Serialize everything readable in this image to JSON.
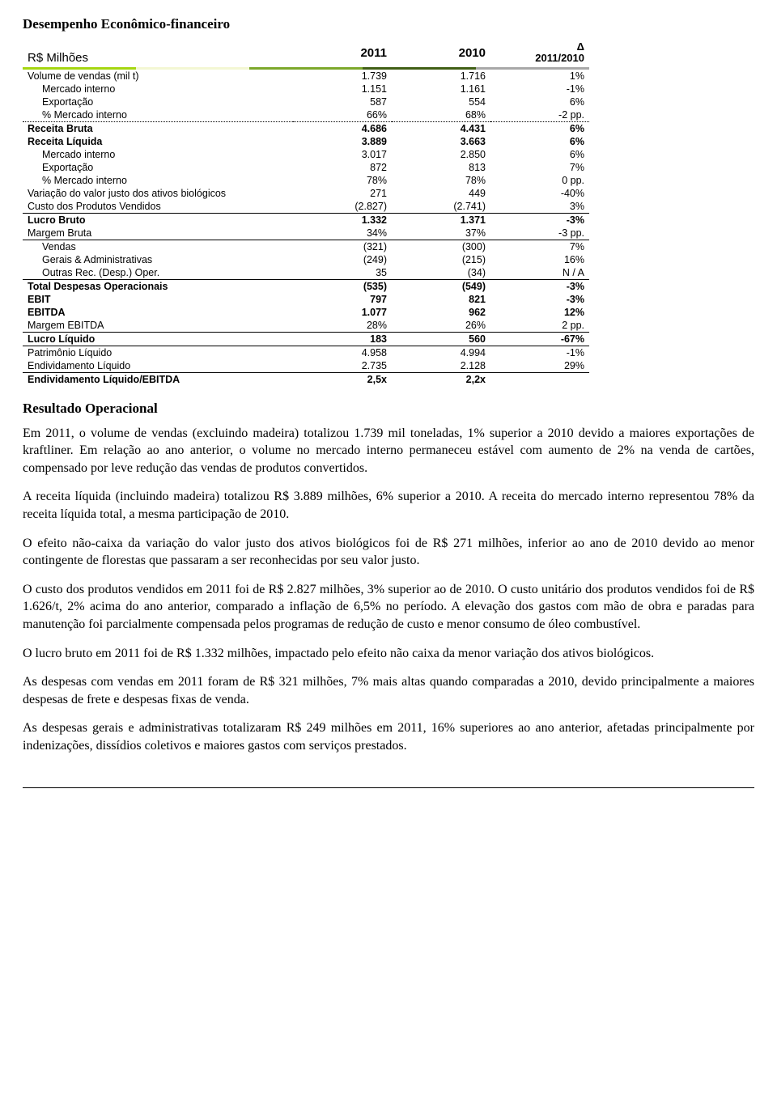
{
  "title": "Desempenho Econômico-financeiro",
  "table": {
    "unit_label": "R$ Milhões",
    "head_2011": "2011",
    "head_2010": "2010",
    "head_delta_top": "Δ",
    "head_delta_bot": "2011/2010",
    "head_colors": [
      "#a5d610",
      "#f3f7d3",
      "#7ca82b",
      "#405f15",
      "#a8a8a8"
    ],
    "rows": [
      {
        "label": "Volume de vendas (mil t)",
        "c1": "1.739",
        "c2": "1.716",
        "c3": "1%",
        "indent": 0,
        "bold": false,
        "border": "none"
      },
      {
        "label": "Mercado interno",
        "c1": "1.151",
        "c2": "1.161",
        "c3": "-1%",
        "indent": 1,
        "bold": false,
        "border": "none"
      },
      {
        "label": "Exportação",
        "c1": "587",
        "c2": "554",
        "c3": "6%",
        "indent": 1,
        "bold": false,
        "border": "none"
      },
      {
        "label": "% Mercado interno",
        "c1": "66%",
        "c2": "68%",
        "c3": "-2 pp.",
        "indent": 1,
        "bold": false,
        "border": "dotted"
      },
      {
        "label": "Receita Bruta",
        "c1": "4.686",
        "c2": "4.431",
        "c3": "6%",
        "indent": 0,
        "bold": true,
        "border": "none"
      },
      {
        "label": "Receita Líquida",
        "c1": "3.889",
        "c2": "3.663",
        "c3": "6%",
        "indent": 0,
        "bold": true,
        "border": "none"
      },
      {
        "label": "Mercado interno",
        "c1": "3.017",
        "c2": "2.850",
        "c3": "6%",
        "indent": 1,
        "bold": false,
        "border": "none"
      },
      {
        "label": "Exportação",
        "c1": "872",
        "c2": "813",
        "c3": "7%",
        "indent": 1,
        "bold": false,
        "border": "none"
      },
      {
        "label": "% Mercado interno",
        "c1": "78%",
        "c2": "78%",
        "c3": "0 pp.",
        "indent": 1,
        "bold": false,
        "border": "none"
      },
      {
        "label": "Variação do valor justo dos ativos biológicos",
        "c1": "271",
        "c2": "449",
        "c3": "-40%",
        "indent": 0,
        "bold": false,
        "border": "none"
      },
      {
        "label": "Custo dos Produtos Vendidos",
        "c1": "(2.827)",
        "c2": "(2.741)",
        "c3": "3%",
        "indent": 0,
        "bold": false,
        "border": "solid"
      },
      {
        "label": "Lucro Bruto",
        "c1": "1.332",
        "c2": "1.371",
        "c3": "-3%",
        "indent": 0,
        "bold": true,
        "border": "none"
      },
      {
        "label": "Margem Bruta",
        "c1": "34%",
        "c2": "37%",
        "c3": "-3 pp.",
        "indent": 0,
        "bold": false,
        "border": "solid"
      },
      {
        "label": "Vendas",
        "c1": "(321)",
        "c2": "(300)",
        "c3": "7%",
        "indent": 1,
        "bold": false,
        "border": "none"
      },
      {
        "label": "Gerais & Administrativas",
        "c1": "(249)",
        "c2": "(215)",
        "c3": "16%",
        "indent": 1,
        "bold": false,
        "border": "none"
      },
      {
        "label": "Outras Rec. (Desp.) Oper.",
        "c1": "35",
        "c2": "(34)",
        "c3": "N / A",
        "indent": 1,
        "bold": false,
        "border": "solid"
      },
      {
        "label": "Total Despesas Operacionais",
        "c1": "(535)",
        "c2": "(549)",
        "c3": "-3%",
        "indent": 0,
        "bold": true,
        "border": "none"
      },
      {
        "label": "EBIT",
        "c1": "797",
        "c2": "821",
        "c3": "-3%",
        "indent": 0,
        "bold": true,
        "border": "none"
      },
      {
        "label": "EBITDA",
        "c1": "1.077",
        "c2": "962",
        "c3": "12%",
        "indent": 0,
        "bold": true,
        "border": "none"
      },
      {
        "label": "Margem EBITDA",
        "c1": "28%",
        "c2": "26%",
        "c3": "2 pp.",
        "indent": 0,
        "bold": false,
        "border": "solid"
      },
      {
        "label": "Lucro Líquido",
        "c1": "183",
        "c2": "560",
        "c3": "-67%",
        "indent": 0,
        "bold": true,
        "border": "solid"
      },
      {
        "label": "Patrimônio Líquido",
        "c1": "4.958",
        "c2": "4.994",
        "c3": "-1%",
        "indent": 0,
        "bold": false,
        "border": "none"
      },
      {
        "label": "Endividamento Líquido",
        "c1": "2.735",
        "c2": "2.128",
        "c3": "29%",
        "indent": 0,
        "bold": false,
        "border": "solid"
      },
      {
        "label": "Endividamento Líquido/EBITDA",
        "c1": "2,5x",
        "c2": "2,2x",
        "c3": "",
        "indent": 0,
        "bold": true,
        "border": "none"
      }
    ]
  },
  "section2_title": "Resultado Operacional",
  "paragraphs": [
    "Em 2011, o volume de vendas (excluindo madeira) totalizou 1.739 mil toneladas, 1% superior a 2010 devido a maiores exportações de kraftliner. Em relação ao ano anterior, o volume no mercado interno permaneceu estável com aumento de 2% na venda de cartões, compensado por leve redução das vendas de produtos convertidos.",
    "A receita líquida (incluindo madeira) totalizou R$ 3.889 milhões, 6% superior a 2010. A receita do mercado interno representou 78% da receita líquida total, a mesma participação de 2010.",
    "O efeito não-caixa da variação do valor justo dos ativos biológicos foi de R$ 271 milhões, inferior ao ano de 2010 devido ao menor contingente de florestas que passaram a ser reconhecidas por seu valor justo.",
    "O custo dos produtos vendidos em 2011 foi de R$ 2.827 milhões, 3% superior ao de 2010. O custo unitário dos produtos vendidos foi de R$ 1.626/t, 2% acima do ano anterior, comparado a inflação de 6,5% no período. A elevação dos gastos com mão de obra e paradas para manutenção foi parcialmente compensada pelos programas de redução de custo e menor consumo de óleo combustível.",
    "O lucro bruto em 2011 foi de R$ 1.332 milhões, impactado pelo efeito não caixa da menor variação dos ativos biológicos.",
    "As despesas com vendas em 2011 foram de R$ 321 milhões, 7% mais altas quando comparadas a 2010, devido principalmente a maiores despesas de frete e despesas fixas de venda.",
    "As despesas gerais e administrativas totalizaram R$ 249 milhões em 2011, 16% superiores ao ano anterior, afetadas principalmente por indenizações, dissídios coletivos e maiores gastos com serviços prestados."
  ]
}
